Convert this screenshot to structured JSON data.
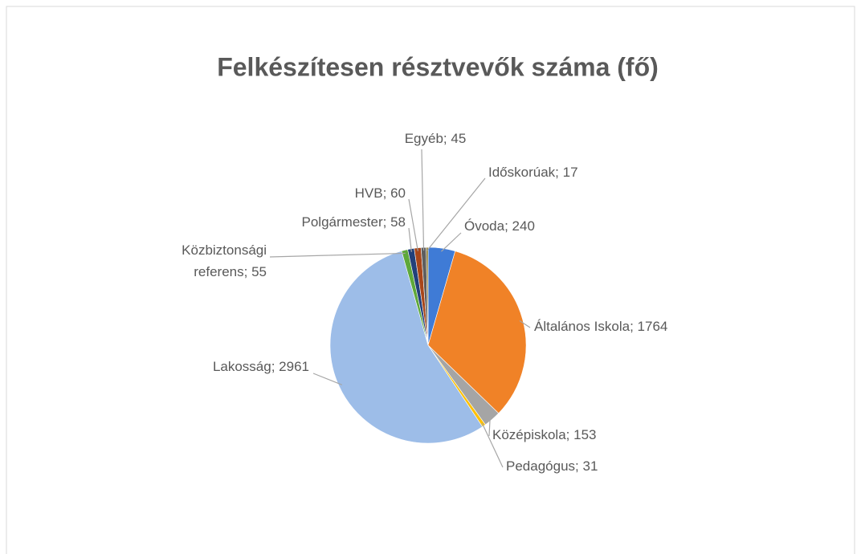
{
  "chart_data": {
    "type": "pie",
    "title": "Felkészítesen résztvevők száma (fő)",
    "categories": [
      "Óvoda",
      "Általános Iskola",
      "Középiskola",
      "Pedagógus",
      "Lakosság",
      "Közbiztonsági referens",
      "Polgármester",
      "HVB",
      "Egyéb",
      "Időskorúak"
    ],
    "values": [
      240,
      1764,
      153,
      31,
      2961,
      55,
      58,
      60,
      45,
      17
    ],
    "colors": [
      "#3f7bd6",
      "#f08227",
      "#a5a5a5",
      "#ffc000",
      "#9dbde8",
      "#5ea83a",
      "#22407a",
      "#a8461a",
      "#5e5e5e",
      "#8e7a2a"
    ]
  }
}
